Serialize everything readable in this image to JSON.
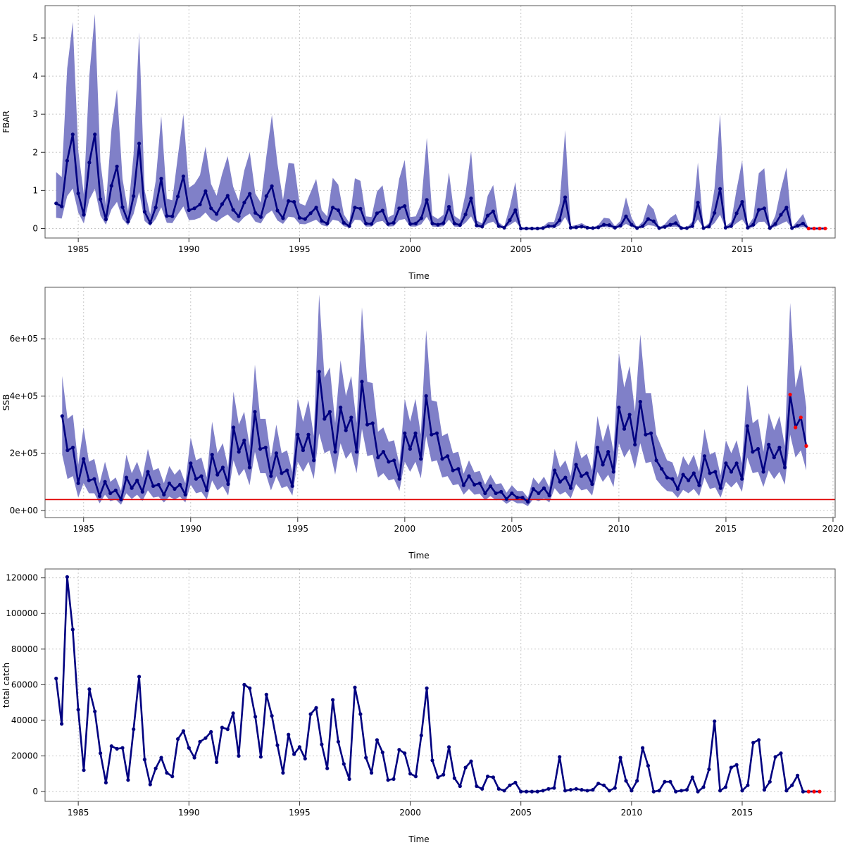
{
  "colors": {
    "series": "#000080",
    "band": "#8080c8",
    "forecast": "#ff0000",
    "reference_line": "#e00000"
  },
  "chart_data": [
    {
      "type": "line",
      "xlabel": "Time",
      "ylabel": "FBAR",
      "xlim": [
        1983.5,
        2019.2
      ],
      "ylim": [
        -0.25,
        5.85
      ],
      "xticks": [
        "1985",
        "1990",
        "1995",
        "2000",
        "2005",
        "2010",
        "2015"
      ],
      "yticks": [
        "0",
        "1",
        "2",
        "3",
        "4",
        "5"
      ],
      "grid": true,
      "t0": 1984.0,
      "step": 0.25,
      "values": [
        0.66,
        0.58,
        1.78,
        2.47,
        0.92,
        0.36,
        1.73,
        2.47,
        0.77,
        0.24,
        1.12,
        1.63,
        0.56,
        0.18,
        0.85,
        2.23,
        0.44,
        0.15,
        0.55,
        1.31,
        0.33,
        0.32,
        0.84,
        1.37,
        0.48,
        0.53,
        0.63,
        0.98,
        0.53,
        0.38,
        0.64,
        0.86,
        0.49,
        0.32,
        0.68,
        0.91,
        0.41,
        0.3,
        0.85,
        1.11,
        0.47,
        0.27,
        0.72,
        0.7,
        0.28,
        0.25,
        0.4,
        0.55,
        0.2,
        0.13,
        0.55,
        0.48,
        0.15,
        0.06,
        0.55,
        0.52,
        0.13,
        0.12,
        0.4,
        0.47,
        0.12,
        0.15,
        0.53,
        0.59,
        0.12,
        0.13,
        0.27,
        0.75,
        0.13,
        0.1,
        0.14,
        0.57,
        0.13,
        0.09,
        0.37,
        0.79,
        0.08,
        0.05,
        0.34,
        0.45,
        0.06,
        0.02,
        0.22,
        0.48,
        0.0,
        0.0,
        0.0,
        0.0,
        0.01,
        0.06,
        0.06,
        0.22,
        0.82,
        0.02,
        0.03,
        0.05,
        0.02,
        0.01,
        0.03,
        0.1,
        0.09,
        0.02,
        0.07,
        0.32,
        0.1,
        0.01,
        0.06,
        0.25,
        0.19,
        0.01,
        0.04,
        0.1,
        0.14,
        0.01,
        0.01,
        0.06,
        0.68,
        0.01,
        0.05,
        0.41,
        1.04,
        0.02,
        0.06,
        0.4,
        0.7,
        0.02,
        0.1,
        0.49,
        0.53,
        0.01,
        0.12,
        0.36,
        0.55,
        0.01,
        0.07,
        0.13,
        0.0,
        0.0,
        0.0,
        0.0
      ],
      "lower": [
        0.28,
        0.26,
        0.85,
        1.05,
        0.42,
        0.13,
        0.76,
        1.04,
        0.34,
        0.1,
        0.5,
        0.7,
        0.25,
        0.08,
        0.38,
        0.96,
        0.2,
        0.07,
        0.25,
        0.56,
        0.15,
        0.14,
        0.37,
        0.58,
        0.22,
        0.23,
        0.28,
        0.42,
        0.24,
        0.17,
        0.28,
        0.37,
        0.22,
        0.14,
        0.3,
        0.39,
        0.18,
        0.13,
        0.37,
        0.47,
        0.21,
        0.12,
        0.31,
        0.29,
        0.12,
        0.11,
        0.17,
        0.23,
        0.09,
        0.05,
        0.23,
        0.2,
        0.06,
        0.02,
        0.23,
        0.22,
        0.05,
        0.05,
        0.17,
        0.2,
        0.05,
        0.06,
        0.22,
        0.25,
        0.05,
        0.05,
        0.11,
        0.31,
        0.05,
        0.04,
        0.06,
        0.23,
        0.05,
        0.04,
        0.15,
        0.32,
        0.03,
        0.02,
        0.13,
        0.18,
        0.02,
        0.01,
        0.09,
        0.19,
        0.0,
        0.0,
        0.0,
        0.0,
        0.0,
        0.02,
        0.02,
        0.08,
        0.3,
        0.01,
        0.01,
        0.02,
        0.01,
        0.0,
        0.01,
        0.04,
        0.03,
        0.01,
        0.03,
        0.12,
        0.04,
        0.0,
        0.02,
        0.09,
        0.07,
        0.0,
        0.01,
        0.04,
        0.05,
        0.0,
        0.0,
        0.02,
        0.24,
        0.0,
        0.02,
        0.14,
        0.36,
        0.01,
        0.02,
        0.14,
        0.24,
        0.01,
        0.03,
        0.17,
        0.18,
        0.0,
        0.04,
        0.12,
        0.19,
        0.0,
        0.02,
        0.04,
        0.0,
        0.0,
        0.0,
        0.0
      ],
      "upper": [
        1.48,
        1.35,
        4.2,
        5.42,
        2.05,
        0.9,
        4.02,
        5.63,
        1.75,
        0.6,
        2.6,
        3.65,
        1.3,
        0.45,
        1.95,
        5.15,
        1.0,
        0.37,
        1.25,
        2.95,
        0.78,
        0.74,
        1.9,
        3.0,
        1.07,
        1.17,
        1.4,
        2.15,
        1.17,
        0.86,
        1.43,
        1.9,
        1.1,
        0.72,
        1.52,
        2.0,
        0.92,
        0.68,
        1.9,
        2.98,
        1.7,
        0.75,
        1.72,
        1.7,
        0.66,
        0.6,
        0.95,
        1.3,
        0.48,
        0.32,
        1.33,
        1.15,
        0.37,
        0.15,
        1.32,
        1.25,
        0.32,
        0.3,
        0.97,
        1.13,
        0.29,
        0.37,
        1.3,
        1.8,
        0.3,
        0.32,
        0.66,
        2.38,
        0.34,
        0.25,
        0.36,
        1.47,
        0.33,
        0.23,
        0.92,
        2.03,
        0.21,
        0.13,
        0.86,
        1.14,
        0.16,
        0.05,
        0.57,
        1.22,
        0.0,
        0.0,
        0.0,
        0.01,
        0.05,
        0.17,
        0.17,
        0.65,
        2.58,
        0.06,
        0.09,
        0.14,
        0.06,
        0.03,
        0.09,
        0.28,
        0.26,
        0.06,
        0.2,
        0.82,
        0.28,
        0.03,
        0.18,
        0.65,
        0.5,
        0.03,
        0.11,
        0.28,
        0.38,
        0.03,
        0.03,
        0.18,
        1.73,
        0.03,
        0.14,
        1.05,
        3.0,
        0.06,
        0.17,
        1.03,
        1.78,
        0.06,
        0.28,
        1.45,
        1.58,
        0.03,
        0.34,
        1.03,
        1.6,
        0.03,
        0.2,
        0.38,
        0.0,
        0.0,
        0.0,
        0.0
      ],
      "forecast_start_index": 136
    },
    {
      "type": "line",
      "xlabel": "Time",
      "ylabel": "SSB",
      "xlim": [
        1983.2,
        2020.1
      ],
      "ylim": [
        -25000,
        780000
      ],
      "xticks": [
        "1985",
        "1990",
        "1995",
        "2000",
        "2005",
        "2010",
        "2015",
        "2020"
      ],
      "yticks": [
        "0e+00",
        "2e+05",
        "4e+05",
        "6e+05"
      ],
      "grid": true,
      "reference_line": 38000,
      "t0": 1984.0,
      "step": 0.25,
      "values": [
        330000,
        210000,
        220000,
        95000,
        180000,
        105000,
        110000,
        50000,
        100000,
        60000,
        70000,
        38000,
        115000,
        78000,
        105000,
        65000,
        135000,
        85000,
        90000,
        55000,
        95000,
        75000,
        90000,
        55000,
        165000,
        110000,
        120000,
        70000,
        195000,
        125000,
        150000,
        92000,
        290000,
        205000,
        245000,
        150000,
        345000,
        215000,
        220000,
        120000,
        200000,
        130000,
        140000,
        85000,
        265000,
        210000,
        265000,
        175000,
        485000,
        320000,
        345000,
        205000,
        360000,
        280000,
        325000,
        205000,
        450000,
        300000,
        305000,
        185000,
        205000,
        170000,
        175000,
        110000,
        270000,
        215000,
        270000,
        180000,
        400000,
        265000,
        270000,
        180000,
        190000,
        140000,
        145000,
        88000,
        120000,
        90000,
        95000,
        60000,
        85000,
        60000,
        65000,
        40000,
        60000,
        45000,
        45000,
        30000,
        75000,
        60000,
        78000,
        52000,
        140000,
        100000,
        115000,
        78000,
        160000,
        120000,
        130000,
        92000,
        220000,
        160000,
        205000,
        135000,
        360000,
        285000,
        335000,
        230000,
        380000,
        265000,
        270000,
        175000,
        145000,
        115000,
        110000,
        75000,
        125000,
        105000,
        130000,
        88000,
        190000,
        130000,
        135000,
        78000,
        165000,
        135000,
        165000,
        110000,
        295000,
        205000,
        215000,
        135000,
        230000,
        185000,
        220000,
        150000,
        405000,
        290000,
        325000,
        225000
      ],
      "lower": [
        195000,
        110000,
        120000,
        45000,
        95000,
        60000,
        60000,
        25000,
        55000,
        32000,
        38000,
        20000,
        60000,
        40000,
        55000,
        33000,
        70000,
        45000,
        48000,
        28000,
        48000,
        38000,
        48000,
        28000,
        90000,
        60000,
        65000,
        38000,
        105000,
        70000,
        85000,
        52000,
        175000,
        120000,
        145000,
        88000,
        205000,
        130000,
        130000,
        70000,
        120000,
        78000,
        85000,
        52000,
        170000,
        135000,
        170000,
        110000,
        270000,
        200000,
        210000,
        125000,
        235000,
        180000,
        205000,
        130000,
        285000,
        190000,
        195000,
        115000,
        130000,
        105000,
        110000,
        68000,
        170000,
        135000,
        170000,
        112000,
        260000,
        170000,
        175000,
        115000,
        120000,
        88000,
        92000,
        55000,
        75000,
        55000,
        58000,
        36000,
        50000,
        36000,
        38000,
        23000,
        35000,
        25000,
        25000,
        15000,
        40000,
        32000,
        42000,
        28000,
        78000,
        55000,
        65000,
        42000,
        92000,
        70000,
        75000,
        52000,
        135000,
        100000,
        125000,
        82000,
        235000,
        185000,
        215000,
        145000,
        235000,
        165000,
        170000,
        108000,
        85000,
        68000,
        65000,
        44000,
        72000,
        60000,
        75000,
        50000,
        115000,
        75000,
        80000,
        45000,
        100000,
        80000,
        100000,
        65000,
        185000,
        130000,
        135000,
        82000,
        140000,
        110000,
        135000,
        90000,
        265000,
        185000,
        210000,
        140000
      ],
      "upper": [
        470000,
        320000,
        335000,
        160000,
        290000,
        170000,
        180000,
        95000,
        170000,
        100000,
        115000,
        68000,
        195000,
        130000,
        170000,
        115000,
        215000,
        140000,
        148000,
        95000,
        155000,
        125000,
        145000,
        95000,
        255000,
        175000,
        185000,
        115000,
        310000,
        200000,
        235000,
        150000,
        415000,
        300000,
        345000,
        225000,
        510000,
        320000,
        320000,
        185000,
        300000,
        200000,
        210000,
        135000,
        390000,
        310000,
        385000,
        260000,
        755000,
        465000,
        500000,
        305000,
        525000,
        400000,
        470000,
        305000,
        710000,
        450000,
        445000,
        275000,
        290000,
        240000,
        245000,
        160000,
        390000,
        310000,
        390000,
        265000,
        630000,
        385000,
        380000,
        260000,
        270000,
        200000,
        205000,
        128000,
        175000,
        133000,
        138000,
        90000,
        125000,
        92000,
        95000,
        62000,
        88000,
        68000,
        68000,
        45000,
        115000,
        92000,
        118000,
        80000,
        215000,
        150000,
        175000,
        120000,
        245000,
        182000,
        198000,
        140000,
        330000,
        240000,
        305000,
        205000,
        550000,
        430000,
        505000,
        345000,
        615000,
        410000,
        410000,
        265000,
        220000,
        175000,
        168000,
        115000,
        190000,
        158000,
        195000,
        135000,
        285000,
        195000,
        205000,
        122000,
        245000,
        200000,
        245000,
        165000,
        440000,
        305000,
        320000,
        205000,
        340000,
        280000,
        330000,
        225000,
        725000,
        430000,
        510000,
        360000
      ],
      "forecast_start_index": 136
    },
    {
      "type": "line",
      "xlabel": "Time",
      "ylabel": "total catch",
      "xlim": [
        1983.5,
        2019.2
      ],
      "ylim": [
        -5500,
        125000
      ],
      "xticks": [
        "1985",
        "1990",
        "1995",
        "2000",
        "2005",
        "2010",
        "2015"
      ],
      "yticks": [
        "0",
        "20000",
        "40000",
        "60000",
        "80000",
        "100000",
        "120000"
      ],
      "grid": true,
      "t0": 1984.0,
      "step": 0.25,
      "values": [
        63500,
        38000,
        120500,
        91000,
        46000,
        12000,
        57500,
        45000,
        21500,
        5000,
        25500,
        24000,
        24500,
        6500,
        35000,
        64500,
        18000,
        4000,
        13000,
        19000,
        10500,
        8500,
        29500,
        34000,
        24500,
        19000,
        28000,
        30000,
        33500,
        16500,
        36000,
        35000,
        44000,
        20000,
        60000,
        58000,
        42000,
        19500,
        54500,
        42500,
        26000,
        10500,
        32000,
        21000,
        25000,
        18500,
        43500,
        47000,
        26500,
        13000,
        51500,
        28000,
        15500,
        7000,
        58500,
        43500,
        19000,
        10500,
        29000,
        22000,
        6500,
        7000,
        23500,
        21500,
        10000,
        8500,
        31500,
        58000,
        17500,
        8000,
        9500,
        25000,
        7500,
        3000,
        13500,
        17000,
        3000,
        1500,
        8500,
        8000,
        1500,
        500,
        3500,
        5000,
        0,
        0,
        0,
        0,
        500,
        1500,
        2000,
        19500,
        500,
        1000,
        1500,
        1000,
        500,
        1000,
        4500,
        3500,
        500,
        2000,
        19000,
        6000,
        500,
        6000,
        24500,
        14500,
        0,
        500,
        5500,
        5500,
        0,
        500,
        1000,
        8000,
        0,
        2500,
        12500,
        39500,
        500,
        2500,
        13500,
        15000,
        500,
        3500,
        27500,
        29000,
        1000,
        5500,
        19500,
        21500,
        500,
        3500,
        9000,
        0,
        0,
        0,
        0
      ],
      "forecast_start_index": 136
    }
  ]
}
